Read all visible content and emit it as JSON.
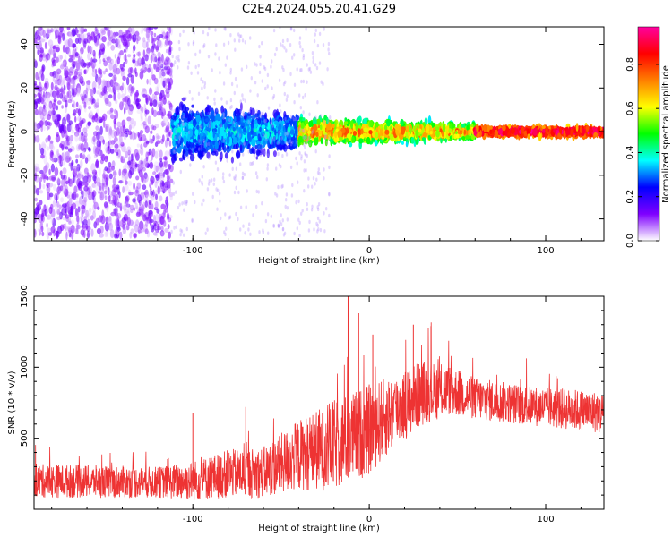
{
  "title": "C2E4.2024.055.20.41.G29",
  "chart_data": [
    {
      "type": "heatmap",
      "xlabel": "Height of straight line (km)",
      "ylabel": "Frequency (Hz)",
      "xlim": [
        -190,
        133
      ],
      "ylim": [
        -50,
        48
      ],
      "x_ticks": [
        -100,
        0,
        100
      ],
      "y_ticks": [
        -40,
        -20,
        0,
        20,
        40
      ],
      "colorbar": {
        "label": "Normalized spectral amplitude",
        "range": [
          0.0,
          0.97
        ],
        "ticks": [
          0.0,
          0.2,
          0.4,
          0.6,
          0.8
        ],
        "colormap": [
          "#ffffff",
          "#7f00ff",
          "#0000ff",
          "#00ffff",
          "#00ff00",
          "#ffff00",
          "#ff7f00",
          "#ff0000",
          "#ff00a0"
        ]
      },
      "regions": [
        {
          "x_range": [
            -190,
            -112
          ],
          "freq_spread": [
            -48,
            48
          ],
          "amplitude": [
            0.02,
            0.15
          ]
        },
        {
          "x_range": [
            -112,
            -40
          ],
          "freq_center": 0,
          "freq_halfwidth": [
            12,
            8
          ],
          "amplitude": [
            0.15,
            0.4
          ]
        },
        {
          "x_range": [
            -40,
            60
          ],
          "freq_center": 0,
          "freq_halfwidth": [
            6,
            3
          ],
          "amplitude": [
            0.3,
            0.8
          ]
        },
        {
          "x_range": [
            60,
            133
          ],
          "freq_center": 0,
          "freq_halfwidth": [
            2,
            2
          ],
          "amplitude": [
            0.6,
            0.97
          ]
        }
      ],
      "grid": false
    },
    {
      "type": "line",
      "xlabel": "Height of straight line (km)",
      "ylabel": "SNR (10 * v/v)",
      "xlim": [
        -190,
        133
      ],
      "ylim": [
        0,
        1500
      ],
      "x_ticks": [
        -100,
        0,
        100
      ],
      "y_ticks": [
        500,
        1000,
        1500
      ],
      "series": [
        {
          "color": "#ee3333",
          "envelope": [
            {
              "x": -190,
              "mean": 200,
              "noise": 120
            },
            {
              "x": -120,
              "mean": 190,
              "noise": 110
            },
            {
              "x": -100,
              "mean": 200,
              "noise": 140
            },
            {
              "x": -80,
              "mean": 250,
              "noise": 170
            },
            {
              "x": -60,
              "mean": 260,
              "noise": 180
            },
            {
              "x": -40,
              "mean": 380,
              "noise": 250
            },
            {
              "x": -20,
              "mean": 450,
              "noise": 320
            },
            {
              "x": 0,
              "mean": 560,
              "noise": 320
            },
            {
              "x": 15,
              "mean": 700,
              "noise": 260
            },
            {
              "x": 30,
              "mean": 820,
              "noise": 230
            },
            {
              "x": 45,
              "mean": 840,
              "noise": 180
            },
            {
              "x": 60,
              "mean": 780,
              "noise": 150
            },
            {
              "x": 90,
              "mean": 730,
              "noise": 140
            },
            {
              "x": 133,
              "mean": 680,
              "noise": 150
            }
          ],
          "spikes": [
            {
              "x": -12,
              "y": 1500
            },
            {
              "x": -6,
              "y": 1380
            },
            {
              "x": 2,
              "y": 1230
            },
            {
              "x": 25,
              "y": 1300
            },
            {
              "x": 35,
              "y": 1290
            },
            {
              "x": -100,
              "y": 680
            },
            {
              "x": -70,
              "y": 720
            }
          ]
        }
      ],
      "grid": false
    }
  ]
}
